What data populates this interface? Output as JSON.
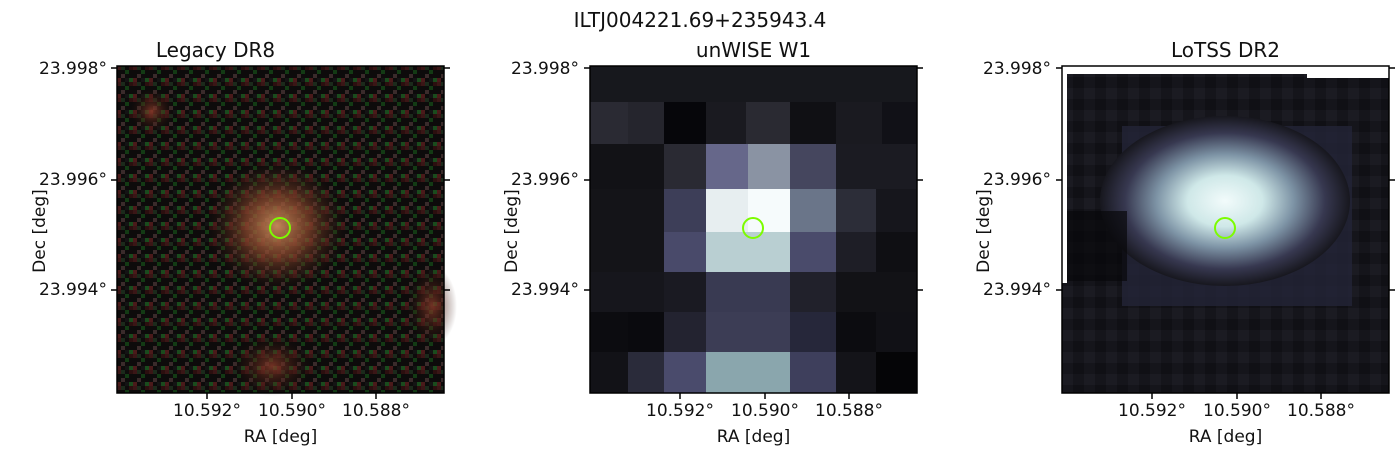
{
  "figure": {
    "title": "ILTJ004221.69+235943.4"
  },
  "panels": [
    {
      "title": "Legacy DR8",
      "xlabel": "RA [deg]",
      "ylabel": "Dec [deg]",
      "xticks": [
        "10.592°",
        "10.590°",
        "10.588°"
      ],
      "yticks": [
        "23.998°",
        "23.996°",
        "23.994°"
      ],
      "marker": "lime-circle"
    },
    {
      "title": "unWISE W1",
      "xlabel": "RA [deg]",
      "ylabel": "Dec [deg]",
      "xticks": [
        "10.592°",
        "10.590°",
        "10.588°"
      ],
      "yticks": [
        "23.998°",
        "23.996°",
        "23.994°"
      ],
      "marker": "lime-circle"
    },
    {
      "title": "LoTSS DR2",
      "xlabel": "RA [deg]",
      "ylabel": "Dec [deg]",
      "xticks": [
        "10.592°",
        "10.590°",
        "10.588°"
      ],
      "yticks": [
        "23.998°",
        "23.996°",
        "23.994°"
      ],
      "marker": "lime-circle"
    }
  ],
  "colors": {
    "marker": "#7cfc00",
    "axes": "#000000",
    "background": "#ffffff"
  }
}
